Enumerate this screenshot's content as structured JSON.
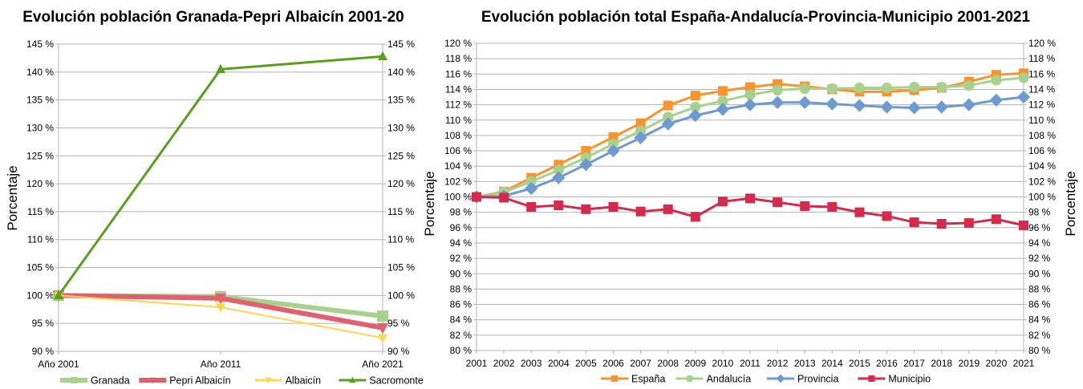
{
  "chart_data": [
    {
      "type": "line",
      "title": "Evolución población Granada-Pepri Albaicín 2001-20",
      "xlabel": "",
      "ylabel": "Porcentaje",
      "categories": [
        "Año 2001",
        "Año 2011",
        "Año 2021"
      ],
      "ylim": [
        90,
        145
      ],
      "ytick_step": 5,
      "ytick_suffix": " %",
      "secondary_y_axis": true,
      "grid": true,
      "legend": "bottom",
      "series": [
        {
          "name": "Granada",
          "color": "#a9d18e",
          "marker": "square",
          "width": "thick",
          "values": [
            100,
            99.8,
            96.3
          ]
        },
        {
          "name": "Pepri Albaicín",
          "color": "#e06070",
          "marker": "triangle-down",
          "width": "thick",
          "values": [
            100,
            99.5,
            94.2
          ]
        },
        {
          "name": "Albaicín",
          "color": "#ffd54f",
          "marker": "triangle-down",
          "width": "thin",
          "values": [
            100,
            97.9,
            92.4
          ]
        },
        {
          "name": "Sacromonte",
          "color": "#5a9e1f",
          "marker": "triangle-up",
          "width": "medium",
          "values": [
            100,
            140.5,
            142.8
          ]
        }
      ]
    },
    {
      "type": "line",
      "title": "Evolución población total España-Andalucía-Provincia-Municipio 2001-2021",
      "xlabel": "",
      "ylabel": "Porcentaje",
      "categories": [
        "2001",
        "2002",
        "2003",
        "2004",
        "2005",
        "2006",
        "2007",
        "2008",
        "2009",
        "2010",
        "2011",
        "2012",
        "2013",
        "2014",
        "2015",
        "2016",
        "2017",
        "2018",
        "2019",
        "2020",
        "2021"
      ],
      "ylim": [
        80,
        120
      ],
      "ytick_step": 2,
      "ytick_suffix": " %",
      "secondary_y_axis": true,
      "grid": true,
      "legend": "bottom",
      "series": [
        {
          "name": "España",
          "color": "#f7942e",
          "marker": "square",
          "values": [
            100,
            100.7,
            102.5,
            104.2,
            106.0,
            107.8,
            109.6,
            111.9,
            113.2,
            113.8,
            114.3,
            114.7,
            114.4,
            114.0,
            113.7,
            113.7,
            113.9,
            114.2,
            115.0,
            115.9,
            116.1
          ]
        },
        {
          "name": "Andalucía",
          "color": "#a9d18e",
          "marker": "circle",
          "values": [
            100,
            100.6,
            102.0,
            103.5,
            105.1,
            106.9,
            108.6,
            110.4,
            111.7,
            112.5,
            113.3,
            113.9,
            114.1,
            114.1,
            114.2,
            114.2,
            114.3,
            114.3,
            114.5,
            115.2,
            115.5
          ]
        },
        {
          "name": "Provincia",
          "color": "#6d9bd1",
          "marker": "diamond",
          "values": [
            100,
            100.1,
            101.1,
            102.5,
            104.2,
            106.0,
            107.7,
            109.5,
            110.6,
            111.4,
            112.0,
            112.3,
            112.3,
            112.1,
            111.9,
            111.7,
            111.6,
            111.7,
            112.0,
            112.6,
            113.0
          ]
        },
        {
          "name": "Municipio",
          "color": "#d42a4b",
          "marker": "square",
          "values": [
            100,
            99.9,
            98.7,
            98.9,
            98.4,
            98.7,
            98.1,
            98.4,
            97.4,
            99.4,
            99.8,
            99.3,
            98.8,
            98.7,
            98.0,
            97.5,
            96.7,
            96.5,
            96.6,
            97.1,
            96.3
          ]
        }
      ]
    }
  ]
}
